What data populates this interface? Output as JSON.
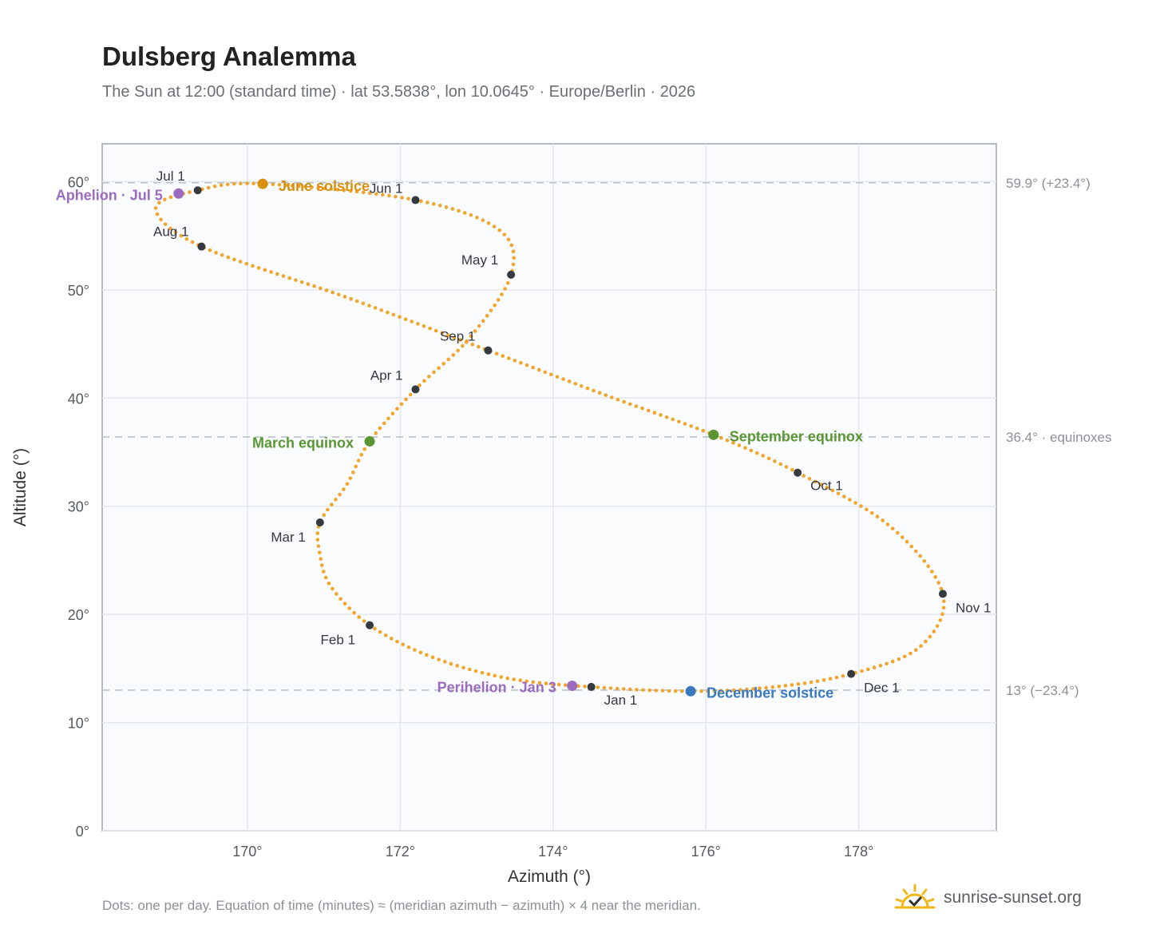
{
  "header": {
    "title": "Dulsberg Analemma",
    "subtitle": "The Sun at 12:00 (standard time) · lat 53.5838°, lon 10.0645° · Europe/Berlin · 2026"
  },
  "footer": {
    "note": "Dots: one per day. Equation of time (minutes) ≈ (meridian azimuth − azimuth) × 4 near the meridian.",
    "brand": "sunrise-sunset.org",
    "brand_icon": "sun-logo-icon"
  },
  "chart_data": {
    "type": "scatter",
    "xlabel": "Azimuth (°)",
    "ylabel": "Altitude (°)",
    "xlim": [
      168.1,
      179.8
    ],
    "ylim": [
      0,
      63.5
    ],
    "xticks": [
      170,
      172,
      174,
      176,
      178
    ],
    "yticks": [
      0,
      10,
      20,
      30,
      40,
      50,
      60
    ],
    "grid": true,
    "colors": {
      "curve": "#f2a52b",
      "month": "#343a40",
      "june_solstice": "#d9900e",
      "december_solstice": "#3a78c0",
      "equinox": "#5a9632",
      "apsis": "#9b6bbf",
      "reference_line": "#b8c2cb"
    },
    "reference_lines": [
      {
        "altitude": 59.9,
        "label": "59.9° (+23.4°)"
      },
      {
        "altitude": 36.4,
        "label": "36.4° · equinoxes"
      },
      {
        "altitude": 13.0,
        "label": "13° (−23.4°)"
      }
    ],
    "month_markers": [
      {
        "label": "Jan 1",
        "azimuth": 174.5,
        "altitude": 13.3
      },
      {
        "label": "Feb 1",
        "azimuth": 171.6,
        "altitude": 19.0
      },
      {
        "label": "Mar 1",
        "azimuth": 170.95,
        "altitude": 28.5
      },
      {
        "label": "Apr 1",
        "azimuth": 172.2,
        "altitude": 40.8
      },
      {
        "label": "May 1",
        "azimuth": 173.45,
        "altitude": 51.4
      },
      {
        "label": "Jun 1",
        "azimuth": 172.2,
        "altitude": 58.3
      },
      {
        "label": "Jul 1",
        "azimuth": 169.35,
        "altitude": 59.2
      },
      {
        "label": "Aug 1",
        "azimuth": 169.4,
        "altitude": 54.0
      },
      {
        "label": "Sep 1",
        "azimuth": 173.15,
        "altitude": 44.4
      },
      {
        "label": "Oct 1",
        "azimuth": 177.2,
        "altitude": 33.1
      },
      {
        "label": "Nov 1",
        "azimuth": 179.1,
        "altitude": 21.9
      },
      {
        "label": "Dec 1",
        "azimuth": 177.9,
        "altitude": 14.5
      }
    ],
    "events": [
      {
        "label": "June solstice",
        "azimuth": 170.2,
        "altitude": 59.8,
        "color_key": "june_solstice"
      },
      {
        "label": "December solstice",
        "azimuth": 175.8,
        "altitude": 12.9,
        "color_key": "december_solstice"
      },
      {
        "label": "March equinox",
        "azimuth": 171.6,
        "altitude": 36.0,
        "color_key": "equinox"
      },
      {
        "label": "September equinox",
        "azimuth": 176.1,
        "altitude": 36.6,
        "color_key": "equinox"
      },
      {
        "label": "Aphelion · Jul 5",
        "azimuth": 169.1,
        "altitude": 58.9,
        "color_key": "apsis"
      },
      {
        "label": "Perihelion · Jan 3",
        "azimuth": 174.25,
        "altitude": 13.4,
        "color_key": "apsis"
      }
    ],
    "path_keypoints": [
      [
        174.5,
        13.3
      ],
      [
        173.4,
        14.1
      ],
      [
        172.4,
        16.1
      ],
      [
        171.6,
        19.0
      ],
      [
        171.1,
        22.5
      ],
      [
        170.95,
        25.5
      ],
      [
        170.95,
        28.5
      ],
      [
        171.3,
        32.0
      ],
      [
        171.6,
        36.0
      ],
      [
        172.2,
        40.8
      ],
      [
        172.9,
        45.5
      ],
      [
        173.45,
        51.4
      ],
      [
        173.3,
        55.5
      ],
      [
        172.2,
        58.3
      ],
      [
        170.2,
        59.8
      ],
      [
        169.35,
        59.2
      ],
      [
        168.8,
        57.5
      ],
      [
        169.4,
        54.0
      ],
      [
        171.3,
        49.3
      ],
      [
        173.15,
        44.4
      ],
      [
        174.6,
        40.5
      ],
      [
        176.1,
        36.6
      ],
      [
        177.2,
        33.1
      ],
      [
        178.4,
        28.2
      ],
      [
        179.1,
        21.9
      ],
      [
        178.8,
        17.0
      ],
      [
        177.9,
        14.5
      ],
      [
        176.9,
        13.3
      ],
      [
        175.8,
        12.9
      ],
      [
        174.5,
        13.3
      ]
    ]
  }
}
